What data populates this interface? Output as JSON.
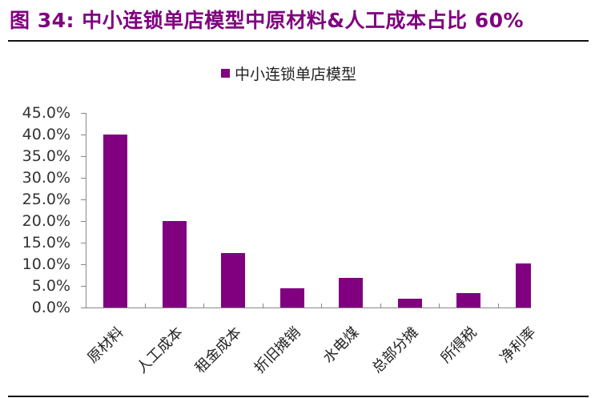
{
  "header": {
    "title": "图 34: 中小连锁单店模型中原材料&人工成本占比 60%"
  },
  "legend": {
    "label": "中小连锁单店模型",
    "color": "#800080"
  },
  "yaxis": {
    "ticks": [
      "45.0%",
      "40.0%",
      "35.0%",
      "30.0%",
      "25.0%",
      "20.0%",
      "15.0%",
      "10.0%",
      "5.0%",
      "0.0%"
    ]
  },
  "xaxis": {
    "labels": [
      "原材料",
      "人工成本",
      "租金成本",
      "折旧摊销",
      "水电煤",
      "总部分摊",
      "所得税",
      "净利率"
    ]
  },
  "colors": {
    "title": "#800080",
    "bar": "#800080",
    "axis": "#888888"
  },
  "chart_data": {
    "type": "bar",
    "title": "图 34: 中小连锁单店模型中原材料&人工成本占比 60%",
    "categories": [
      "原材料",
      "人工成本",
      "租金成本",
      "折旧摊销",
      "水电煤",
      "总部分摊",
      "所得税",
      "净利率"
    ],
    "series": [
      {
        "name": "中小连锁单店模型",
        "values": [
          40.0,
          20.0,
          12.6,
          4.4,
          6.9,
          2.0,
          3.3,
          10.2
        ]
      }
    ],
    "unit": "%",
    "xlabel": "",
    "ylabel": "",
    "ylim": [
      0,
      45
    ],
    "ytick_step": 5,
    "grid": false,
    "legend_position": "top"
  }
}
